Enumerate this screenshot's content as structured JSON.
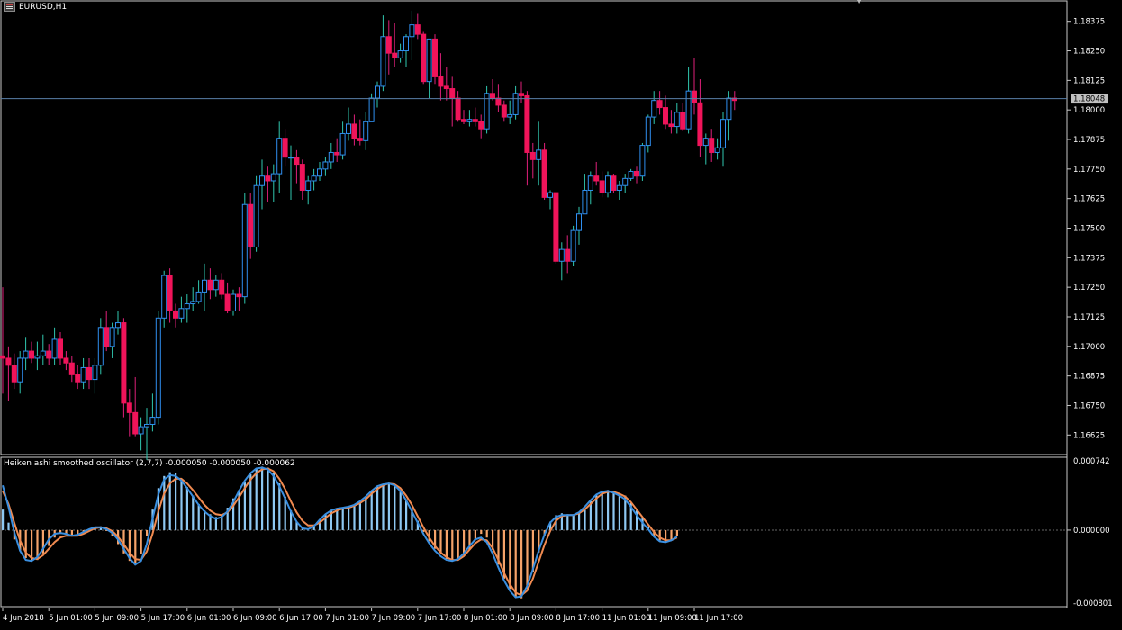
{
  "window": {
    "symbol_label": "EURUSD,H1",
    "icon": "chart-window-icon"
  },
  "indicator": {
    "name": "Heiken ashi smoothed oscillator (2,7,7)",
    "values_text": "-0.000050 -0.000050 -0.000062",
    "scale_top": "0.000742",
    "scale_zero": "0.000000",
    "scale_bottom": "-0.000801",
    "colors": {
      "up": "#8ec8f2",
      "down": "#f5a36a",
      "fast_line": "#3a8fe0",
      "slow_line": "#f08a50"
    }
  },
  "price_axis": {
    "labels": [
      "1.18375",
      "1.18250",
      "1.18125",
      "1.18000",
      "1.17875",
      "1.17750",
      "1.17625",
      "1.17500",
      "1.17375",
      "1.17250",
      "1.17125",
      "1.17000",
      "1.16875",
      "1.16750",
      "1.16625"
    ],
    "current_price": "1.18048",
    "grid": false
  },
  "time_axis": {
    "labels": [
      "4 Jun 2018",
      "5 Jun 01:00",
      "5 Jun 09:00",
      "5 Jun 17:00",
      "6 Jun 01:00",
      "6 Jun 09:00",
      "6 Jun 17:00",
      "7 Jun 01:00",
      "7 Jun 09:00",
      "7 Jun 17:00",
      "8 Jun 01:00",
      "8 Jun 09:00",
      "8 Jun 17:00",
      "11 Jun 01:00",
      "11 Jun 09:00",
      "11 Jun 17:00"
    ]
  },
  "colors": {
    "bull": "#2f8ff0",
    "bear": "#f0145a",
    "bull_wick": "#30c8b0",
    "bear_wick": "#e0207a",
    "bg": "#000000",
    "frame": "#c8c8c8",
    "bid_line": "#5a7fa8"
  },
  "chart_data": {
    "type": "candlestick",
    "symbol": "EURUSD",
    "timeframe": "H1",
    "ylim": [
      1.1655,
      1.1845
    ],
    "candles": [
      [
        1.1696,
        1.1725,
        1.168,
        1.1695
      ],
      [
        1.1695,
        1.17,
        1.1677,
        1.1692
      ],
      [
        1.1692,
        1.1697,
        1.1682,
        1.1685
      ],
      [
        1.1685,
        1.1698,
        1.168,
        1.1695
      ],
      [
        1.1695,
        1.1704,
        1.169,
        1.1698
      ],
      [
        1.1698,
        1.1702,
        1.1693,
        1.1695
      ],
      [
        1.1695,
        1.1702,
        1.169,
        1.1696
      ],
      [
        1.1696,
        1.1705,
        1.1692,
        1.1698
      ],
      [
        1.1698,
        1.1701,
        1.1692,
        1.1695
      ],
      [
        1.1695,
        1.1708,
        1.1692,
        1.1703
      ],
      [
        1.1703,
        1.1706,
        1.1692,
        1.1695
      ],
      [
        1.1695,
        1.1698,
        1.169,
        1.1693
      ],
      [
        1.1693,
        1.1696,
        1.1685,
        1.1688
      ],
      [
        1.1688,
        1.1692,
        1.1682,
        1.1685
      ],
      [
        1.1685,
        1.1695,
        1.1682,
        1.1691
      ],
      [
        1.1691,
        1.1695,
        1.1682,
        1.1686
      ],
      [
        1.1686,
        1.1695,
        1.168,
        1.1692
      ],
      [
        1.1692,
        1.1712,
        1.1688,
        1.1708
      ],
      [
        1.1708,
        1.1715,
        1.1698,
        1.17
      ],
      [
        1.17,
        1.171,
        1.1695,
        1.1708
      ],
      [
        1.1708,
        1.1715,
        1.1705,
        1.171
      ],
      [
        1.171,
        1.1712,
        1.167,
        1.1676
      ],
      [
        1.1676,
        1.1682,
        1.1662,
        1.1672
      ],
      [
        1.1672,
        1.1687,
        1.1662,
        1.1663
      ],
      [
        1.1663,
        1.167,
        1.1656,
        1.1666
      ],
      [
        1.1666,
        1.1674,
        1.1652,
        1.1667
      ],
      [
        1.1667,
        1.168,
        1.1664,
        1.167
      ],
      [
        1.167,
        1.1715,
        1.1667,
        1.1712
      ],
      [
        1.1712,
        1.1732,
        1.1708,
        1.173
      ],
      [
        1.173,
        1.1733,
        1.171,
        1.1715
      ],
      [
        1.1715,
        1.1718,
        1.1708,
        1.1712
      ],
      [
        1.1712,
        1.1721,
        1.171,
        1.1716
      ],
      [
        1.1716,
        1.1722,
        1.171,
        1.1718
      ],
      [
        1.1718,
        1.1725,
        1.1715,
        1.1719
      ],
      [
        1.1719,
        1.1728,
        1.1718,
        1.1723
      ],
      [
        1.1723,
        1.1735,
        1.1715,
        1.1728
      ],
      [
        1.1728,
        1.1733,
        1.172,
        1.1724
      ],
      [
        1.1724,
        1.173,
        1.1721,
        1.1728
      ],
      [
        1.1728,
        1.1731,
        1.172,
        1.1722
      ],
      [
        1.1722,
        1.1727,
        1.1714,
        1.1715
      ],
      [
        1.1715,
        1.1724,
        1.1713,
        1.1722
      ],
      [
        1.1722,
        1.1725,
        1.1715,
        1.1721
      ],
      [
        1.1721,
        1.1765,
        1.1718,
        1.176
      ],
      [
        1.176,
        1.1765,
        1.1737,
        1.1742
      ],
      [
        1.1742,
        1.1772,
        1.174,
        1.1768
      ],
      [
        1.1768,
        1.1779,
        1.1758,
        1.1772
      ],
      [
        1.1772,
        1.1776,
        1.1761,
        1.177
      ],
      [
        1.177,
        1.1777,
        1.1761,
        1.1773
      ],
      [
        1.1773,
        1.1795,
        1.1765,
        1.1788
      ],
      [
        1.1788,
        1.1792,
        1.1776,
        1.178
      ],
      [
        1.178,
        1.1785,
        1.1762,
        1.178
      ],
      [
        1.178,
        1.1783,
        1.1769,
        1.1777
      ],
      [
        1.1777,
        1.1779,
        1.1762,
        1.1766
      ],
      [
        1.1766,
        1.1772,
        1.176,
        1.177
      ],
      [
        1.177,
        1.1775,
        1.1766,
        1.1772
      ],
      [
        1.1772,
        1.1778,
        1.177,
        1.1775
      ],
      [
        1.1775,
        1.178,
        1.1772,
        1.1778
      ],
      [
        1.1778,
        1.1786,
        1.1775,
        1.1782
      ],
      [
        1.1782,
        1.1788,
        1.1778,
        1.1781
      ],
      [
        1.1781,
        1.1795,
        1.1779,
        1.179
      ],
      [
        1.179,
        1.1801,
        1.1787,
        1.1794
      ],
      [
        1.1794,
        1.1798,
        1.1785,
        1.1788
      ],
      [
        1.1788,
        1.1796,
        1.1785,
        1.1787
      ],
      [
        1.1787,
        1.1799,
        1.1783,
        1.1795
      ],
      [
        1.1795,
        1.1807,
        1.1795,
        1.1805
      ],
      [
        1.1805,
        1.1812,
        1.1801,
        1.181
      ],
      [
        1.181,
        1.184,
        1.1808,
        1.1831
      ],
      [
        1.1831,
        1.1838,
        1.1815,
        1.1824
      ],
      [
        1.1824,
        1.1837,
        1.1818,
        1.1822
      ],
      [
        1.1822,
        1.1828,
        1.182,
        1.1825
      ],
      [
        1.1825,
        1.1832,
        1.1818,
        1.1831
      ],
      [
        1.1831,
        1.1842,
        1.1821,
        1.1836
      ],
      [
        1.1836,
        1.1841,
        1.183,
        1.1832
      ],
      [
        1.1832,
        1.1833,
        1.1811,
        1.1812
      ],
      [
        1.1812,
        1.183,
        1.1805,
        1.183
      ],
      [
        1.183,
        1.1832,
        1.1811,
        1.1814
      ],
      [
        1.1814,
        1.1824,
        1.1804,
        1.181
      ],
      [
        1.181,
        1.1818,
        1.1804,
        1.1809
      ],
      [
        1.1809,
        1.1814,
        1.1793,
        1.1805
      ],
      [
        1.1805,
        1.1808,
        1.1795,
        1.1796
      ],
      [
        1.1796,
        1.18,
        1.1794,
        1.1795
      ],
      [
        1.1795,
        1.18,
        1.1793,
        1.1796
      ],
      [
        1.1796,
        1.1801,
        1.1793,
        1.1795
      ],
      [
        1.1795,
        1.1798,
        1.1788,
        1.1792
      ],
      [
        1.1792,
        1.181,
        1.179,
        1.1807
      ],
      [
        1.1807,
        1.1813,
        1.1804,
        1.1805
      ],
      [
        1.1805,
        1.1811,
        1.1799,
        1.1802
      ],
      [
        1.1802,
        1.1804,
        1.1795,
        1.1797
      ],
      [
        1.1797,
        1.1804,
        1.1794,
        1.1798
      ],
      [
        1.1798,
        1.181,
        1.1796,
        1.1807
      ],
      [
        1.1807,
        1.1812,
        1.1803,
        1.1806
      ],
      [
        1.1806,
        1.1808,
        1.1768,
        1.1782
      ],
      [
        1.1782,
        1.1786,
        1.1771,
        1.1779
      ],
      [
        1.1779,
        1.1795,
        1.1768,
        1.1783
      ],
      [
        1.1783,
        1.1786,
        1.1762,
        1.1763
      ],
      [
        1.1763,
        1.1766,
        1.1758,
        1.1765
      ],
      [
        1.1765,
        1.1765,
        1.1735,
        1.1736
      ],
      [
        1.1736,
        1.1744,
        1.1728,
        1.1741
      ],
      [
        1.1741,
        1.1747,
        1.1731,
        1.1736
      ],
      [
        1.1736,
        1.1751,
        1.1734,
        1.1749
      ],
      [
        1.1749,
        1.1759,
        1.1743,
        1.1756
      ],
      [
        1.1756,
        1.1773,
        1.1756,
        1.1766
      ],
      [
        1.1766,
        1.1774,
        1.176,
        1.1772
      ],
      [
        1.1772,
        1.1778,
        1.1768,
        1.177
      ],
      [
        1.177,
        1.1774,
        1.1763,
        1.1765
      ],
      [
        1.1765,
        1.1774,
        1.1763,
        1.1772
      ],
      [
        1.1772,
        1.1773,
        1.1765,
        1.1766
      ],
      [
        1.1766,
        1.177,
        1.1762,
        1.1768
      ],
      [
        1.1768,
        1.1773,
        1.1765,
        1.1771
      ],
      [
        1.1771,
        1.1775,
        1.177,
        1.1774
      ],
      [
        1.1774,
        1.1776,
        1.1769,
        1.1772
      ],
      [
        1.1772,
        1.1786,
        1.177,
        1.1785
      ],
      [
        1.1785,
        1.1798,
        1.1782,
        1.1797
      ],
      [
        1.1797,
        1.1808,
        1.1794,
        1.1804
      ],
      [
        1.1804,
        1.1808,
        1.1798,
        1.1801
      ],
      [
        1.1801,
        1.1806,
        1.1792,
        1.1794
      ],
      [
        1.1794,
        1.18,
        1.179,
        1.1793
      ],
      [
        1.1793,
        1.1803,
        1.179,
        1.1799
      ],
      [
        1.1799,
        1.1803,
        1.1791,
        1.1792
      ],
      [
        1.1792,
        1.1818,
        1.179,
        1.1808
      ],
      [
        1.1808,
        1.1822,
        1.1798,
        1.1803
      ],
      [
        1.1803,
        1.1813,
        1.178,
        1.1785
      ],
      [
        1.1785,
        1.179,
        1.1777,
        1.1788
      ],
      [
        1.1788,
        1.1792,
        1.1778,
        1.1782
      ],
      [
        1.1782,
        1.1788,
        1.1779,
        1.1784
      ],
      [
        1.1784,
        1.1799,
        1.1776,
        1.1796
      ],
      [
        1.1796,
        1.1808,
        1.1787,
        1.1805
      ],
      [
        1.1805,
        1.1808,
        1.18,
        1.1804
      ]
    ],
    "oscillator": {
      "name": "Heiken ashi smoothed oscillator (2,7,7)",
      "ylim": [
        -0.000801,
        0.000742
      ],
      "values": [
        0.00022,
        8e-05,
        -0.0001,
        -0.00022,
        -0.0003,
        -0.00033,
        -0.00032,
        -0.00025,
        -0.00017,
        -8e-05,
        -4e-05,
        -4e-05,
        -5e-05,
        -4e-05,
        -2e-05,
        1e-05,
        3e-05,
        4e-05,
        -1e-05,
        -6e-05,
        -0.00015,
        -0.00025,
        -0.00033,
        -0.00035,
        -0.00026,
        -6e-05,
        0.00022,
        0.00045,
        0.00058,
        0.00062,
        0.00061,
        0.00055,
        0.00046,
        0.00037,
        0.00028,
        0.00021,
        0.00017,
        0.00014,
        0.00016,
        0.00024,
        0.00034,
        0.00043,
        0.00051,
        0.0006,
        0.00066,
        0.00068,
        0.00067,
        0.00061,
        0.0005,
        0.00036,
        0.00021,
        9e-05,
        2e-05,
        0,
        4e-05,
        0.00011,
        0.00017,
        0.00021,
        0.00023,
        0.00024,
        0.00025,
        0.00027,
        0.00031,
        0.00036,
        0.00042,
        0.00047,
        0.00049,
        0.0005,
        0.00048,
        0.00042,
        0.00033,
        0.00022,
        0.0001,
        -2e-05,
        -0.00012,
        -0.0002,
        -0.00025,
        -0.00031,
        -0.00033,
        -0.00032,
        -0.00027,
        -0.00021,
        -0.00011,
        -4e-05,
        -8e-05,
        -0.00021,
        -0.00037,
        -0.00052,
        -0.00063,
        -0.00072,
        -0.00073,
        -0.00063,
        -0.00045,
        -0.00024,
        -6e-05,
        9e-05,
        0.00016,
        0.00018,
        0.00017,
        0.00016,
        0.00018,
        0.00023,
        0.00031,
        0.00038,
        0.00042,
        0.00043,
        0.00041,
        0.00039,
        0.00037,
        0.00029,
        0.00021,
        0.00013,
        4e-05,
        -6e-05,
        -0.00011,
        -0.00013,
        -0.0001,
        -6e-05
      ],
      "fast": [
        0.00048,
        0.00025,
        -2e-05,
        -0.00022,
        -0.00032,
        -0.00033,
        -0.00029,
        -0.0002,
        -0.0001,
        -4e-05,
        -3e-05,
        -4e-05,
        -6e-05,
        -5e-05,
        -2e-05,
        1e-05,
        3e-05,
        3e-05,
        1e-05,
        -3e-05,
        -0.0001,
        -0.0002,
        -0.0003,
        -0.00037,
        -0.00033,
        -0.00015,
        0.00012,
        0.00038,
        0.00054,
        0.00059,
        0.00058,
        0.00053,
        0.00045,
        0.00036,
        0.00027,
        0.0002,
        0.00015,
        0.00012,
        0.00014,
        0.0002,
        0.0003,
        0.00042,
        0.00053,
        0.00061,
        0.00066,
        0.00067,
        0.00065,
        0.00058,
        0.00047,
        0.00034,
        0.0002,
        9e-05,
        2e-05,
        1e-05,
        4e-05,
        0.00011,
        0.00017,
        0.00021,
        0.00023,
        0.00024,
        0.00025,
        0.00027,
        0.00031,
        0.00036,
        0.00042,
        0.00047,
        0.00049,
        0.0005,
        0.00048,
        0.00042,
        0.00032,
        0.0002,
        8e-05,
        -4e-05,
        -0.00014,
        -0.00022,
        -0.00028,
        -0.00032,
        -0.00033,
        -0.00031,
        -0.00025,
        -0.00017,
        -0.0001,
        -8e-05,
        -0.00013,
        -0.00025,
        -0.0004,
        -0.00054,
        -0.00065,
        -0.00072,
        -0.00071,
        -0.0006,
        -0.00042,
        -0.00022,
        -5e-05,
        8e-05,
        0.00014,
        0.00016,
        0.00016,
        0.00016,
        0.00019,
        0.00025,
        0.00032,
        0.00038,
        0.00041,
        0.00042,
        0.0004,
        0.00037,
        0.00033,
        0.00025,
        0.00016,
        8e-05,
        1e-05,
        -7e-05,
        -0.00012,
        -0.00013,
        -0.00011,
        -7e-05
      ],
      "slow": [
        0.00042,
        0.00028,
        8e-05,
        -0.00011,
        -0.00024,
        -0.0003,
        -0.00031,
        -0.00027,
        -0.0002,
        -0.00013,
        -8e-05,
        -6e-05,
        -6e-05,
        -6e-05,
        -4e-05,
        -1e-05,
        2e-05,
        3e-05,
        2e-05,
        -1e-05,
        -7e-05,
        -0.00015,
        -0.00024,
        -0.00031,
        -0.00032,
        -0.00023,
        -4e-05,
        0.0002,
        0.00039,
        0.0005,
        0.00055,
        0.00055,
        0.0005,
        0.00043,
        0.00035,
        0.00027,
        0.00021,
        0.00017,
        0.00016,
        0.00019,
        0.00026,
        0.00035,
        0.00045,
        0.00054,
        0.00061,
        0.00065,
        0.00066,
        0.00063,
        0.00055,
        0.00044,
        0.00031,
        0.00019,
        0.0001,
        5e-05,
        5e-05,
        8e-05,
        0.00013,
        0.00018,
        0.00021,
        0.00023,
        0.00024,
        0.00026,
        0.00029,
        0.00033,
        0.00039,
        0.00044,
        0.00048,
        0.0005,
        0.00049,
        0.00045,
        0.00037,
        0.00027,
        0.00015,
        3e-05,
        -8e-05,
        -0.00017,
        -0.00024,
        -0.00029,
        -0.00032,
        -0.00032,
        -0.00028,
        -0.00021,
        -0.00014,
        -0.0001,
        -0.00011,
        -0.00019,
        -0.00032,
        -0.00046,
        -0.00058,
        -0.00067,
        -0.0007,
        -0.00065,
        -0.00052,
        -0.00034,
        -0.00016,
        -1e-05,
        0.0001,
        0.00015,
        0.00016,
        0.00016,
        0.00018,
        0.00022,
        0.00028,
        0.00034,
        0.00039,
        0.00041,
        0.00041,
        0.00039,
        0.00036,
        0.0003,
        0.00022,
        0.00014,
        6e-05,
        -2e-05,
        -8e-05,
        -0.00011,
        -0.00011,
        -8e-05
      ]
    }
  }
}
